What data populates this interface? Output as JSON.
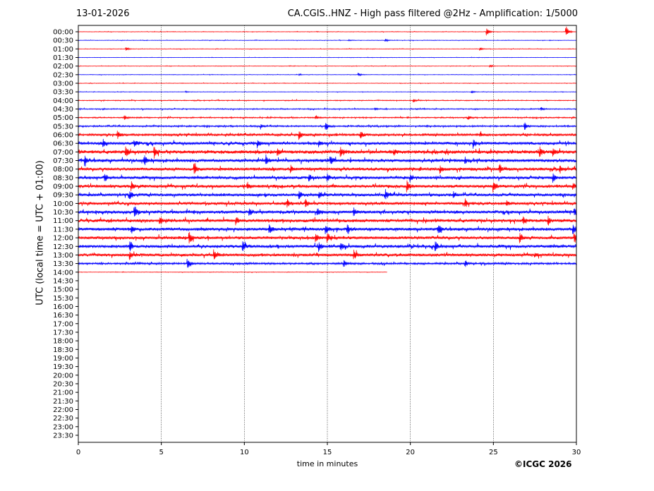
{
  "header": {
    "date": "13-01-2026",
    "title": "CA.CGIS..HNZ - High pass filtered @2Hz - Amplification: 1/5000"
  },
  "footer": {
    "credit": "©ICGC 2026"
  },
  "colors": {
    "even_trace": "#ff0000",
    "odd_trace": "#0000ff",
    "grid": "#000000"
  },
  "chart_data": {
    "type": "line",
    "subtype": "helicorder seismogram",
    "xlabel": "time in minutes",
    "ylabel": "UTC (local time = UTC + 01:00)",
    "xlim": [
      0,
      30
    ],
    "xticks": [
      0,
      5,
      10,
      15,
      20,
      25,
      30
    ],
    "grid_x": true,
    "grid_y": false,
    "rows": [
      "00:00",
      "00:30",
      "01:00",
      "01:30",
      "02:00",
      "02:30",
      "03:00",
      "03:30",
      "04:00",
      "04:30",
      "05:00",
      "05:30",
      "06:00",
      "06:30",
      "07:00",
      "07:30",
      "08:00",
      "08:30",
      "09:00",
      "09:30",
      "10:00",
      "10:30",
      "11:00",
      "11:30",
      "12:00",
      "12:30",
      "13:00",
      "13:30",
      "14:00",
      "14:30",
      "15:00",
      "15:30",
      "16:00",
      "16:30",
      "17:00",
      "17:30",
      "18:00",
      "18:30",
      "19:00",
      "19:30",
      "20:00",
      "20:30",
      "21:00",
      "21:30",
      "22:00",
      "22:30",
      "23:00",
      "23:30"
    ],
    "recorded_rows": 29,
    "last_row_end_minute": 18.6,
    "noise_level": [
      0.05,
      0.05,
      0.05,
      0.04,
      0.05,
      0.05,
      0.05,
      0.05,
      0.08,
      0.1,
      0.12,
      0.15,
      0.22,
      0.28,
      0.35,
      0.32,
      0.3,
      0.28,
      0.3,
      0.28,
      0.28,
      0.3,
      0.32,
      0.3,
      0.3,
      0.3,
      0.28,
      0.2,
      0.05
    ],
    "events": [
      [
        {
          "t": 24.6,
          "a": 0.8
        },
        {
          "t": 29.4,
          "a": 0.9
        }
      ],
      [
        {
          "t": 18.5,
          "a": 0.25
        },
        {
          "t": 16.3,
          "a": 0.15
        }
      ],
      [
        {
          "t": 2.9,
          "a": 0.25
        },
        {
          "t": 24.2,
          "a": 0.3
        }
      ],
      [],
      [
        {
          "t": 24.8,
          "a": 0.2
        }
      ],
      [
        {
          "t": 16.9,
          "a": 0.3
        },
        {
          "t": 13.3,
          "a": 0.12
        }
      ],
      [],
      [
        {
          "t": 23.7,
          "a": 0.25
        },
        {
          "t": 6.5,
          "a": 0.1
        }
      ],
      [
        {
          "t": 20.2,
          "a": 0.3
        }
      ],
      [
        {
          "t": 27.9,
          "a": 0.25
        },
        {
          "t": 17.9,
          "a": 0.2
        }
      ],
      [
        {
          "t": 2.8,
          "a": 0.35
        },
        {
          "t": 14.3,
          "a": 0.35
        },
        {
          "t": 23.5,
          "a": 0.3
        }
      ],
      [
        {
          "t": 14.9,
          "a": 0.9
        },
        {
          "t": 26.9,
          "a": 0.6
        },
        {
          "t": 11.0,
          "a": 0.4
        }
      ],
      [
        {
          "t": 2.4,
          "a": 0.6
        },
        {
          "t": 13.3,
          "a": 0.9
        },
        {
          "t": 17.0,
          "a": 0.8
        },
        {
          "t": 24.2,
          "a": 0.4
        }
      ],
      [
        {
          "t": 1.5,
          "a": 0.7
        },
        {
          "t": 3.4,
          "a": 0.6
        },
        {
          "t": 10.8,
          "a": 0.8
        },
        {
          "t": 14.5,
          "a": 0.6
        },
        {
          "t": 23.8,
          "a": 0.7
        }
      ],
      [
        {
          "t": 2.9,
          "a": 0.7
        },
        {
          "t": 4.6,
          "a": 0.7
        },
        {
          "t": 12.0,
          "a": 0.6
        },
        {
          "t": 15.8,
          "a": 0.7
        },
        {
          "t": 19.0,
          "a": 0.6
        },
        {
          "t": 27.8,
          "a": 0.8
        },
        {
          "t": 28.6,
          "a": 0.6
        }
      ],
      [
        {
          "t": 0.4,
          "a": 0.7
        },
        {
          "t": 4.0,
          "a": 0.8
        },
        {
          "t": 11.3,
          "a": 0.8
        },
        {
          "t": 15.2,
          "a": 0.7
        },
        {
          "t": 23.3,
          "a": 0.5
        }
      ],
      [
        {
          "t": 7.0,
          "a": 0.8
        },
        {
          "t": 12.8,
          "a": 0.6
        },
        {
          "t": 21.8,
          "a": 0.7
        },
        {
          "t": 25.4,
          "a": 0.7
        },
        {
          "t": 29.0,
          "a": 0.5
        }
      ],
      [
        {
          "t": 1.6,
          "a": 0.7
        },
        {
          "t": 13.9,
          "a": 0.6
        },
        {
          "t": 15.0,
          "a": 0.7
        },
        {
          "t": 20.0,
          "a": 0.7
        },
        {
          "t": 28.6,
          "a": 0.7
        }
      ],
      [
        {
          "t": 3.2,
          "a": 0.7
        },
        {
          "t": 10.2,
          "a": 0.6
        },
        {
          "t": 19.8,
          "a": 0.9
        },
        {
          "t": 25.0,
          "a": 0.8
        },
        {
          "t": 29.8,
          "a": 0.7
        }
      ],
      [
        {
          "t": 3.1,
          "a": 0.8
        },
        {
          "t": 13.3,
          "a": 0.7
        },
        {
          "t": 14.5,
          "a": 0.6
        },
        {
          "t": 18.5,
          "a": 0.9
        },
        {
          "t": 22.6,
          "a": 0.5
        }
      ],
      [
        {
          "t": 12.6,
          "a": 0.6
        },
        {
          "t": 13.7,
          "a": 0.6
        },
        {
          "t": 23.3,
          "a": 0.8
        },
        {
          "t": 25.8,
          "a": 0.5
        }
      ],
      [
        {
          "t": 3.4,
          "a": 0.8
        },
        {
          "t": 10.3,
          "a": 0.7
        },
        {
          "t": 14.4,
          "a": 0.7
        },
        {
          "t": 16.6,
          "a": 0.8
        },
        {
          "t": 29.9,
          "a": 0.8
        }
      ],
      [
        {
          "t": 4.9,
          "a": 0.8
        },
        {
          "t": 9.5,
          "a": 0.6
        },
        {
          "t": 26.8,
          "a": 0.6
        },
        {
          "t": 28.3,
          "a": 0.7
        }
      ],
      [
        {
          "t": 3.2,
          "a": 0.8
        },
        {
          "t": 11.5,
          "a": 0.9
        },
        {
          "t": 14.9,
          "a": 0.9
        },
        {
          "t": 16.2,
          "a": 0.7
        },
        {
          "t": 21.7,
          "a": 0.8
        },
        {
          "t": 29.8,
          "a": 0.9
        }
      ],
      [
        {
          "t": 6.7,
          "a": 0.9
        },
        {
          "t": 14.3,
          "a": 0.7
        },
        {
          "t": 15.0,
          "a": 0.8
        },
        {
          "t": 26.6,
          "a": 0.8
        },
        {
          "t": 29.9,
          "a": 0.7
        }
      ],
      [
        {
          "t": 3.1,
          "a": 0.8
        },
        {
          "t": 9.9,
          "a": 0.9
        },
        {
          "t": 14.5,
          "a": 0.8
        },
        {
          "t": 15.8,
          "a": 0.6
        },
        {
          "t": 21.5,
          "a": 0.9
        }
      ],
      [
        {
          "t": 3.1,
          "a": 0.7
        },
        {
          "t": 8.2,
          "a": 0.6
        },
        {
          "t": 16.6,
          "a": 0.9
        },
        {
          "t": 27.5,
          "a": 0.5
        }
      ],
      [
        {
          "t": 6.6,
          "a": 0.8
        },
        {
          "t": 16.0,
          "a": 0.6
        },
        {
          "t": 23.3,
          "a": 0.6
        }
      ],
      []
    ]
  }
}
